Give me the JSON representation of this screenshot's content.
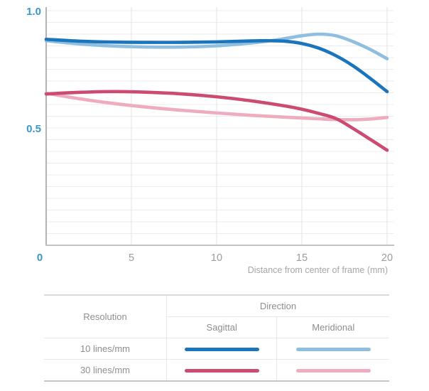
{
  "chart_data": {
    "type": "line",
    "xlabel": "Distance from center of frame (mm)",
    "ylabel": "",
    "xlim": [
      0,
      20
    ],
    "ylim": [
      0,
      1.0
    ],
    "grid": true,
    "legend_position": "table-below",
    "x_tick_labels": [
      "0",
      "5",
      "10",
      "15",
      "20"
    ],
    "y_tick_labels": [
      "1.0",
      "0.5"
    ],
    "x_gridlines": [
      5,
      10,
      15,
      20
    ],
    "y_gridline_step": 0.05,
    "series": [
      {
        "name": "10 lines/mm Sagittal",
        "color": "#1b75bc",
        "x": [
          0,
          2,
          4,
          6,
          8,
          10,
          12,
          13,
          14,
          15,
          16,
          17,
          18,
          19,
          20
        ],
        "values": [
          0.878,
          0.87,
          0.866,
          0.865,
          0.865,
          0.867,
          0.871,
          0.872,
          0.87,
          0.86,
          0.84,
          0.808,
          0.765,
          0.712,
          0.655
        ]
      },
      {
        "name": "10 lines/mm Meridional",
        "color": "#8fbfe0",
        "x": [
          0,
          2,
          4,
          6,
          8,
          10,
          12,
          13,
          14,
          15,
          16,
          17,
          18,
          19,
          20
        ],
        "values": [
          0.872,
          0.858,
          0.849,
          0.845,
          0.845,
          0.85,
          0.862,
          0.87,
          0.881,
          0.893,
          0.9,
          0.893,
          0.868,
          0.835,
          0.795
        ]
      },
      {
        "name": "30 lines/mm Sagittal",
        "color": "#cc4b71",
        "x": [
          0,
          2,
          4,
          6,
          8,
          10,
          12,
          14,
          15,
          16,
          17,
          18,
          19,
          20
        ],
        "values": [
          0.645,
          0.652,
          0.655,
          0.652,
          0.645,
          0.633,
          0.616,
          0.594,
          0.58,
          0.562,
          0.54,
          0.498,
          0.452,
          0.405
        ]
      },
      {
        "name": "30 lines/mm Meridional",
        "color": "#eeacbe",
        "x": [
          0,
          2,
          4,
          6,
          8,
          10,
          12,
          14,
          16,
          17,
          18,
          19,
          20
        ],
        "values": [
          0.648,
          0.624,
          0.604,
          0.588,
          0.575,
          0.564,
          0.554,
          0.546,
          0.539,
          0.536,
          0.535,
          0.538,
          0.545
        ]
      }
    ]
  },
  "legend_table": {
    "resolution_header": "Resolution",
    "direction_header": "Direction",
    "sagittal_header": "Sagittal",
    "meridional_header": "Meridional",
    "rows": [
      {
        "label": "10 lines/mm"
      },
      {
        "label": "30 lines/mm"
      }
    ]
  },
  "colors": {
    "axis_label_blue": "#3a96cb",
    "tick_gray": "#9b9b9b",
    "grid_light": "#ececec",
    "grid_vertical": "#e3e3e3",
    "axis_line": "#b3b3b3",
    "bottom_axis_line": "#c3c3c3"
  }
}
